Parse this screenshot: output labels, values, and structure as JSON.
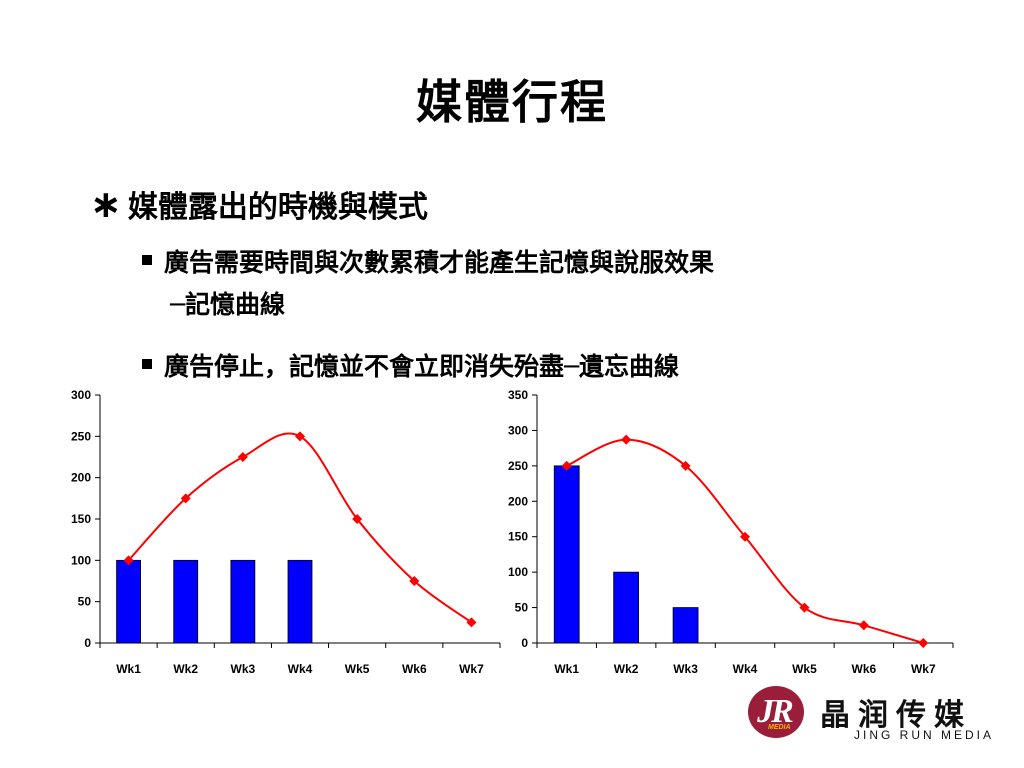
{
  "slide": {
    "title": "媒體行程",
    "bullet_l1": "媒體露出的時機與模式",
    "bullet_l1_marker": "∗",
    "bullets_l2": [
      {
        "line1": "廣告需要時間與次數累積才能產生記憶與說服效果",
        "line2": "─記憶曲線"
      },
      {
        "line1": "廣告停止，記憶並不會立即消失殆盡─遺忘曲線"
      }
    ]
  },
  "logo": {
    "mark": "JR",
    "mark_sub": "MEDIA",
    "name_cn": "晶润传媒",
    "name_en": "JING RUN MEDIA",
    "colors": {
      "circle": "#9a1d3a",
      "sub": "#f2b600"
    }
  },
  "chart_data": [
    {
      "type": "bar",
      "categories": [
        "Wk1",
        "Wk2",
        "Wk3",
        "Wk4",
        "Wk5",
        "Wk6",
        "Wk7"
      ],
      "series": [
        {
          "kind": "bar",
          "values": [
            100,
            100,
            100,
            100,
            0,
            0,
            0
          ],
          "color": "#0000ff"
        },
        {
          "kind": "line",
          "values": [
            100,
            175,
            225,
            250,
            150,
            75,
            25
          ],
          "color": "#ff0000",
          "smooth": true,
          "marker": "diamond"
        }
      ],
      "ylim": [
        0,
        300
      ],
      "yticks": [
        0,
        50,
        100,
        150,
        200,
        250,
        300
      ],
      "grid": false,
      "legend": "none"
    },
    {
      "type": "bar",
      "categories": [
        "Wk1",
        "Wk2",
        "Wk3",
        "Wk4",
        "Wk5",
        "Wk6",
        "Wk7"
      ],
      "series": [
        {
          "kind": "bar",
          "values": [
            250,
            100,
            50,
            0,
            0,
            0,
            0
          ],
          "color": "#0000ff"
        },
        {
          "kind": "line",
          "values": [
            250,
            287,
            250,
            150,
            50,
            25,
            0
          ],
          "color": "#ff0000",
          "smooth": true,
          "marker": "diamond"
        }
      ],
      "ylim": [
        0,
        350
      ],
      "yticks": [
        0,
        50,
        100,
        150,
        200,
        250,
        300,
        350
      ],
      "grid": false,
      "legend": "none"
    }
  ]
}
